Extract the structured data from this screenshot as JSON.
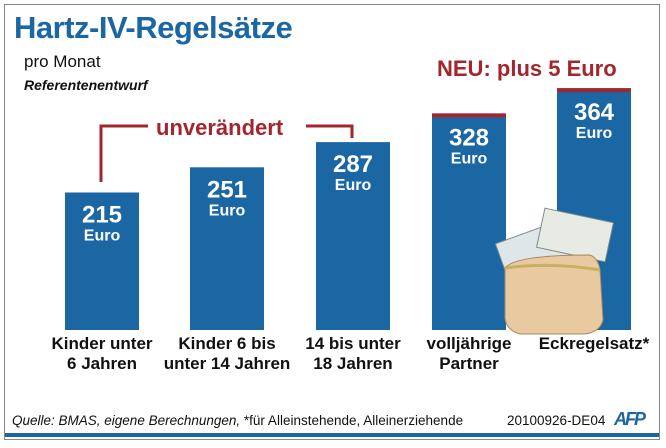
{
  "header": {
    "title": "Hartz-IV-Regelsätze",
    "subtitle": "pro Monat",
    "note": "Referentenentwurf"
  },
  "annotations": {
    "unchanged": "unverändert",
    "new": "NEU: plus 5 Euro"
  },
  "footer": {
    "source": "Quelle: BMAS, eigene Berechnungen,",
    "footnote": "*für Alleinstehende, Alleinerziehende",
    "code": "20100926-DE04",
    "logo": "AFP"
  },
  "colors": {
    "bar": "#1b67a4",
    "accent": "#a3262e",
    "text_on_bar": "#ffffff"
  },
  "chart_data": {
    "type": "bar",
    "categories": [
      "Kinder unter\n6 Jahren",
      "Kinder 6 bis\nunter 14 Jahren",
      "14 bis unter\n18 Jahren",
      "volljährige\nPartner",
      "Eckregelsatz*"
    ],
    "values": [
      215,
      251,
      287,
      328,
      364
    ],
    "unit": "Euro",
    "highlight_increase": [
      false,
      false,
      false,
      true,
      true
    ],
    "title": "Hartz-IV-Regelsätze",
    "grid": false
  }
}
